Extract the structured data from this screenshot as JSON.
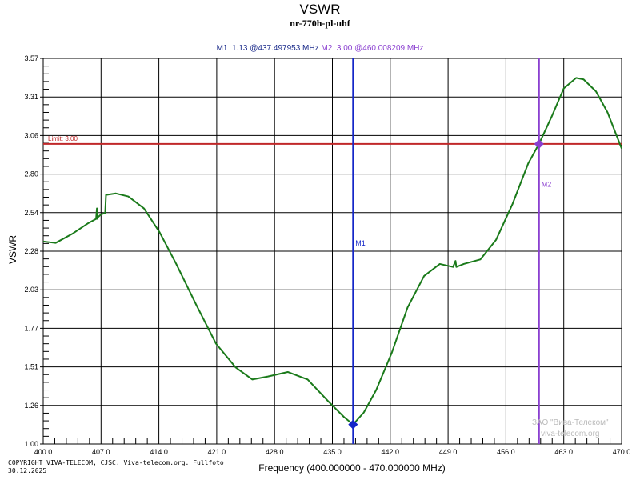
{
  "chart_data": {
    "type": "line",
    "title": "VSWR",
    "subtitle": "nr-770h-pl-uhf",
    "xlabel": "Frequency (400.000000 - 470.000000 MHz)",
    "ylabel": "VSWR",
    "xlim": [
      400,
      470
    ],
    "ylim": [
      1.0,
      3.57
    ],
    "x_ticks": [
      "400.0",
      "407.0",
      "414.0",
      "421.0",
      "428.0",
      "435.0",
      "442.0",
      "449.0",
      "456.0",
      "463.0",
      "470.0"
    ],
    "y_ticks": [
      "1.00",
      "1.26",
      "1.51",
      "1.77",
      "2.03",
      "2.28",
      "2.54",
      "2.80",
      "3.06",
      "3.31",
      "3.57"
    ],
    "grid": true,
    "colors": {
      "trace": "#1a7a1a",
      "limit": "#c0282a",
      "m1": "#1426c8",
      "m2": "#8a3fd0",
      "grid": "#000000"
    },
    "limit": {
      "label": "Limit: 3.00",
      "value": 3.0
    },
    "markers": [
      {
        "name": "M1",
        "value": "1.13",
        "freq": "@437.497953 MHz",
        "x": 437.498,
        "y": 1.13
      },
      {
        "name": "M2",
        "value": "3.00",
        "freq": "@460.008209 MHz",
        "x": 460.008,
        "y": 3.0
      }
    ],
    "series": [
      {
        "x": [
          400,
          401.5,
          403.5,
          405.4,
          406.4,
          406.5,
          406.5,
          406.6,
          407.0,
          407.5,
          407.6,
          408.8,
          410.3,
          412.2,
          414.1,
          416.1,
          418.5,
          420.9,
          423.3,
          425.3,
          427.2,
          429.6,
          432.0,
          434.4,
          436.4,
          437.5,
          438.8,
          440.3,
          442.2,
          444.1,
          446.1,
          448.0,
          449.6,
          449.9,
          450.0,
          450.9,
          452.9,
          454.8,
          456.8,
          458.7,
          460.0,
          461.6,
          463.0,
          464.5,
          465.4,
          466.9,
          468.3,
          470.0
        ],
        "y": [
          2.35,
          2.34,
          2.4,
          2.47,
          2.5,
          2.57,
          2.5,
          2.51,
          2.53,
          2.54,
          2.66,
          2.67,
          2.65,
          2.57,
          2.41,
          2.2,
          1.93,
          1.67,
          1.51,
          1.43,
          1.45,
          1.48,
          1.43,
          1.29,
          1.18,
          1.13,
          1.21,
          1.36,
          1.61,
          1.91,
          2.12,
          2.2,
          2.18,
          2.22,
          2.18,
          2.2,
          2.23,
          2.36,
          2.6,
          2.87,
          3.0,
          3.19,
          3.37,
          3.44,
          3.43,
          3.35,
          3.21,
          2.97
        ]
      }
    ]
  },
  "footer": {
    "copyright": "COPYRIGHT VIVA-TELECOM, CJSC. Viva-telecom.org. Fullfoto",
    "date": "30.12.2025",
    "watermark_line1": "ЗАО \"Вива-Телеком\"",
    "watermark_line2": "viva-telecom.org"
  }
}
